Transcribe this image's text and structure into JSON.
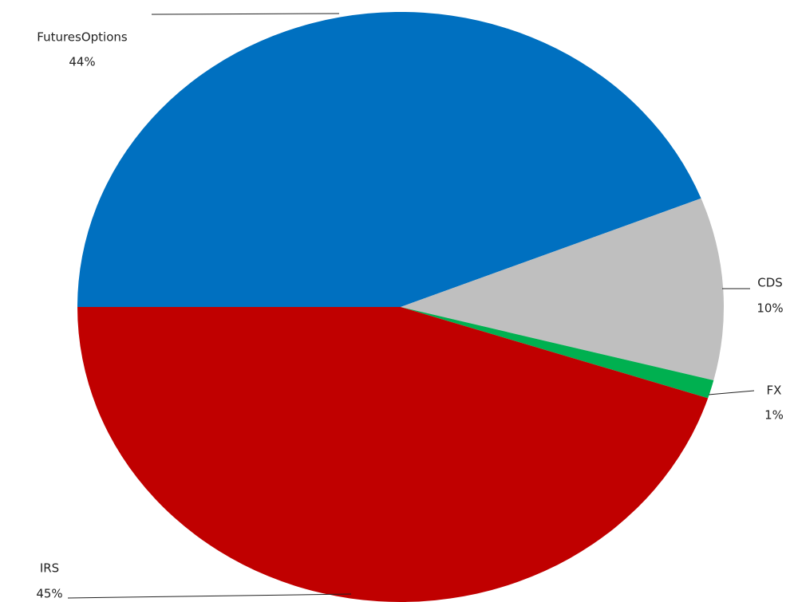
{
  "chart_data": {
    "type": "pie",
    "categories": [
      "FuturesOptions",
      "CDS",
      "FX",
      "IRS"
    ],
    "values": [
      44,
      10,
      1,
      45
    ],
    "value_labels": [
      "44%",
      "10%",
      "1%",
      "45%"
    ],
    "colors": [
      "#0070c0",
      "#bfbfbf",
      "#00b050",
      "#c00000"
    ]
  }
}
